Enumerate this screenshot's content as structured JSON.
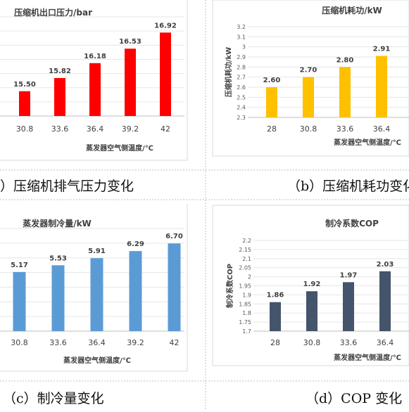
{
  "chart_data": [
    {
      "type": "bar",
      "title": "压缩机出口压力/bar",
      "xlabel": "蒸发器空气侧温度/℃",
      "ylabel": "",
      "categories": [
        "30.8",
        "33.6",
        "36.4",
        "39.2",
        "42"
      ],
      "values": [
        15.5,
        15.82,
        16.18,
        16.53,
        16.92
      ],
      "value_labels": [
        "15.50",
        "15.82",
        "16.18",
        "16.53",
        "16.92"
      ],
      "yticks": [],
      "ylim": [
        14.9,
        17.3
      ],
      "color": "#FF0000",
      "grid": true,
      "caption": "）压缩机排气压力变化"
    },
    {
      "type": "bar",
      "title": "压缩机耗功/kW",
      "xlabel": "蒸发器空气侧温度/℃",
      "ylabel": "压缩机耗功/kW",
      "categories": [
        "28",
        "30.8",
        "33.6",
        "36.4"
      ],
      "values": [
        2.6,
        2.7,
        2.8,
        2.91
      ],
      "value_labels": [
        "2.60",
        "2.70",
        "2.80",
        "2.91"
      ],
      "yticks": [
        "2.3",
        "2.4",
        "2.5",
        "2.6",
        "2.7",
        "2.8",
        "2.9",
        "3",
        "3.1",
        "3.2"
      ],
      "ylim": [
        2.3,
        3.2
      ],
      "color": "#FFC000",
      "grid": true,
      "caption": "（b）压缩机耗功变化"
    },
    {
      "type": "bar",
      "title": "蒸发器制冷量/kW",
      "xlabel": "蒸发器空气侧温度/℃",
      "ylabel": "",
      "categories": [
        "30.8",
        "33.6",
        "36.4",
        "39.2",
        "42"
      ],
      "values": [
        5.17,
        5.53,
        5.91,
        6.29,
        6.7
      ],
      "value_labels": [
        "5.17",
        "5.53",
        "5.91",
        "6.29",
        "6.70"
      ],
      "yticks": [],
      "ylim": [
        2.0,
        7.5
      ],
      "color": "#5B9BD5",
      "grid": true,
      "caption": "（c）制冷量变化"
    },
    {
      "type": "bar",
      "title": "制冷系数COP",
      "xlabel": "蒸发器空气侧温度/℃",
      "ylabel": "制冷系数COP",
      "categories": [
        "28",
        "30.8",
        "33.6",
        "36.4"
      ],
      "values": [
        1.86,
        1.92,
        1.97,
        2.03
      ],
      "value_labels": [
        "1.86",
        "1.92",
        "1.97",
        "2.03"
      ],
      "yticks": [
        "1.7",
        "1.75",
        "1.8",
        "1.85",
        "1.9",
        "1.95",
        "2",
        "2.05",
        "2.1",
        "2.15",
        "2.2"
      ],
      "ylim": [
        1.7,
        2.2
      ],
      "color": "#44546A",
      "grid": true,
      "caption": "（d）COP 变化"
    }
  ]
}
